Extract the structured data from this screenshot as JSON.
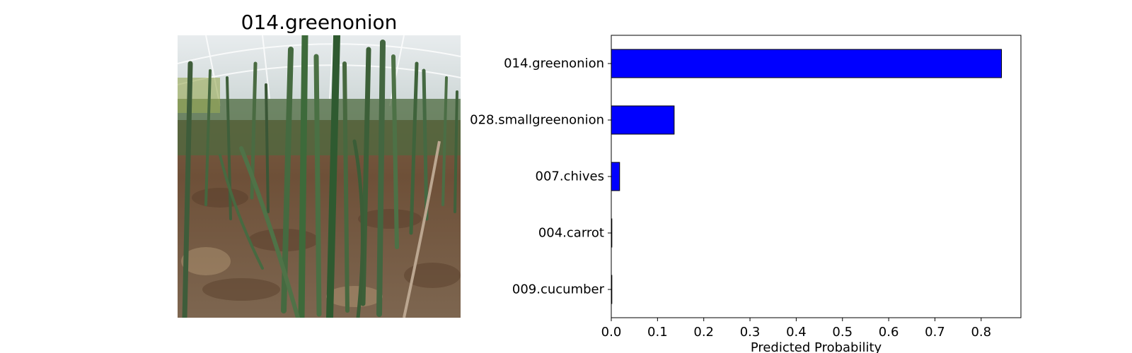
{
  "image_panel": {
    "title": "014.greenonion"
  },
  "chart_data": {
    "type": "bar",
    "orientation": "horizontal",
    "categories": [
      "014.greenonion",
      "028.smallgreenonion",
      "007.chives",
      "004.carrot",
      "009.cucumber"
    ],
    "values": [
      0.844,
      0.136,
      0.018,
      0.001,
      0.0005
    ],
    "xlabel": "Predicted Probability",
    "ylabel": "",
    "xlim": [
      0,
      0.886
    ],
    "xticks": [
      0.0,
      0.1,
      0.2,
      0.3,
      0.4,
      0.5,
      0.6,
      0.7,
      0.8
    ],
    "grid": false,
    "bar_color": "#0000ff",
    "bar_edge_color": "#000000"
  }
}
